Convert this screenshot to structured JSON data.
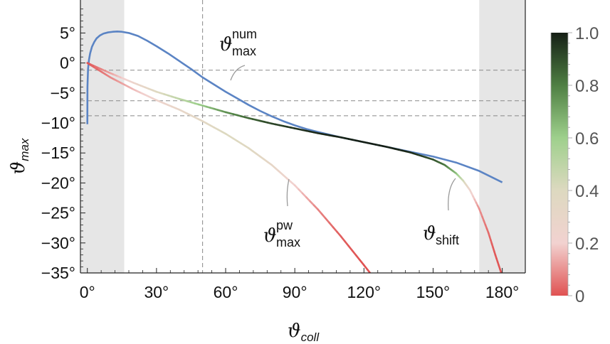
{
  "chart_data": {
    "type": "line",
    "x_ticks": [
      "0°",
      "30°",
      "60°",
      "90°",
      "120°",
      "150°",
      "180°"
    ],
    "y_ticks": [
      "5°",
      "0°",
      "−5°",
      "−10°",
      "−15°",
      "−20°",
      "−25°",
      "−30°",
      "−35°"
    ],
    "xlim": [
      -3,
      190
    ],
    "ylim": [
      -35,
      10.5
    ],
    "xlabel": {
      "symbol": "ϑ",
      "sub": "coll"
    },
    "ylabel": {
      "symbol": "ϑ",
      "sub": "max"
    },
    "shaded_regions": [
      [
        -3,
        16
      ],
      [
        170,
        190
      ]
    ],
    "vline": 50,
    "hlines": [
      -1.2,
      -6.3,
      -8.8
    ],
    "colorbar": {
      "ticks": [
        "0",
        "0.2",
        "0.4",
        "0.6",
        "0.8",
        "1.0"
      ],
      "colors": [
        "#e05252",
        "#f2d2d0",
        "#ddd9c0",
        "#9ed08c",
        "#4f7f43",
        "#151f15"
      ]
    },
    "series": [
      {
        "label_symbol": "ϑ",
        "label_sup": "num",
        "label_sub": "max",
        "color": "#5b84c4",
        "x": [
          0,
          0.05,
          0.3,
          0.7,
          1.2,
          2,
          3,
          4,
          5.5,
          7,
          9,
          11,
          13,
          15,
          18,
          22,
          26,
          30,
          35,
          40,
          45,
          50,
          55,
          60,
          65,
          70,
          75,
          80,
          85,
          90,
          95,
          100,
          110,
          120,
          130,
          140,
          150,
          160,
          170,
          180
        ],
        "y": [
          -10.2,
          -4,
          -1,
          0.5,
          1.6,
          2.7,
          3.5,
          4.1,
          4.6,
          4.9,
          5.1,
          5.2,
          5.25,
          5.2,
          5.0,
          4.5,
          3.7,
          2.8,
          1.6,
          0.3,
          -1.0,
          -2.4,
          -3.6,
          -4.8,
          -5.9,
          -7.0,
          -8.0,
          -8.9,
          -9.7,
          -10.4,
          -11.0,
          -11.5,
          -12.4,
          -13.2,
          -14.0,
          -14.8,
          -15.6,
          -16.6,
          -18.0,
          -19.9
        ]
      },
      {
        "label_symbol": "ϑ",
        "label_sup": "pw",
        "label_sub": "max",
        "color": "#e05252",
        "x": [
          0,
          10,
          20,
          30,
          40,
          50,
          60,
          70,
          80,
          90,
          100,
          110,
          120,
          130
        ],
        "y": [
          0,
          -2.4,
          -4.4,
          -6.2,
          -7.8,
          -9.7,
          -11.8,
          -14.2,
          -17.0,
          -20.4,
          -24.4,
          -28.9,
          -33.7,
          -38.6
        ],
        "colorvalue": [
          0,
          0.08,
          0.16,
          0.24,
          0.3,
          0.35,
          0.4,
          0.38,
          0.32,
          0.2,
          0.08,
          0.02,
          0,
          0
        ]
      },
      {
        "label_symbol": "ϑ",
        "label_sup": "",
        "label_sub": "shift",
        "color": "#151f15",
        "x": [
          0,
          10,
          20,
          30,
          40,
          50,
          60,
          70,
          80,
          90,
          100,
          110,
          120,
          130,
          140,
          150,
          155,
          160,
          163,
          166,
          170,
          174,
          177,
          180
        ],
        "y": [
          0,
          -1.7,
          -3.3,
          -4.8,
          -6.0,
          -7.1,
          -8.2,
          -9.2,
          -10.1,
          -10.9,
          -11.7,
          -12.4,
          -13.2,
          -14.0,
          -14.9,
          -16.1,
          -17.0,
          -18.4,
          -19.6,
          -21.2,
          -24.3,
          -28.3,
          -32.0,
          -35.5
        ],
        "colorvalue": [
          0,
          0.12,
          0.25,
          0.38,
          0.5,
          0.62,
          0.75,
          0.85,
          0.92,
          0.96,
          0.98,
          0.99,
          1.0,
          1.0,
          0.98,
          0.9,
          0.82,
          0.65,
          0.45,
          0.25,
          0.1,
          0.04,
          0.01,
          0
        ]
      }
    ]
  }
}
